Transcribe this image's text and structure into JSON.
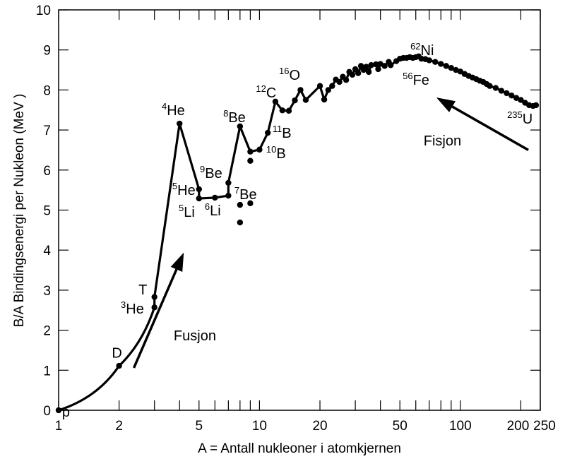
{
  "chart_data": {
    "type": "line",
    "title": "",
    "xlabel": "A = Antall nukleoner i atomkjernen",
    "ylabel": "B/A Bindingsenergi per Nukleon (MeV )",
    "xscale": "log",
    "xlim": [
      1,
      250
    ],
    "ylim": [
      0,
      10
    ],
    "grid": false,
    "x_ticks": [
      1,
      2,
      5,
      10,
      20,
      50,
      100,
      200,
      250
    ],
    "x_tick_labels": [
      "1",
      "2",
      "5",
      "10",
      "20",
      "50",
      "100",
      "200",
      "250"
    ],
    "x_minor_ticks": [
      3,
      4,
      6,
      7,
      8,
      9,
      30,
      40,
      60,
      70,
      80,
      90
    ],
    "y_ticks": [
      0,
      1,
      2,
      3,
      4,
      5,
      6,
      7,
      8,
      9,
      10
    ],
    "y_tick_labels": [
      "0",
      "1",
      "2",
      "3",
      "4",
      "5",
      "6",
      "7",
      "8",
      "9",
      "10"
    ],
    "series": [
      {
        "name": "main",
        "points": [
          [
            1,
            0
          ],
          [
            2,
            1.11
          ],
          [
            3,
            2.57
          ],
          [
            3,
            2.83
          ],
          [
            4,
            7.16
          ],
          [
            5,
            5.52
          ],
          [
            5,
            5.29
          ],
          [
            6,
            5.31
          ],
          [
            7,
            5.36
          ],
          [
            7,
            5.68
          ],
          [
            8,
            7.09
          ],
          [
            9,
            6.46
          ],
          [
            10,
            6.51
          ],
          [
            11,
            6.93
          ],
          [
            12,
            7.71
          ],
          [
            13,
            7.49
          ],
          [
            14,
            7.48
          ],
          [
            15,
            7.74
          ],
          [
            16,
            8.0
          ],
          [
            17,
            7.75
          ],
          [
            20,
            8.1
          ],
          [
            21,
            7.76
          ],
          [
            22,
            8.0
          ],
          [
            23,
            8.1
          ],
          [
            24,
            8.26
          ],
          [
            25,
            8.2
          ],
          [
            26,
            8.33
          ],
          [
            27,
            8.25
          ],
          [
            28,
            8.45
          ],
          [
            29,
            8.38
          ],
          [
            30,
            8.52
          ],
          [
            31,
            8.42
          ],
          [
            32,
            8.6
          ],
          [
            33,
            8.5
          ],
          [
            34,
            8.58
          ],
          [
            35,
            8.45
          ],
          [
            36,
            8.62
          ],
          [
            38,
            8.64
          ],
          [
            39,
            8.52
          ],
          [
            40,
            8.65
          ],
          [
            42,
            8.6
          ],
          [
            44,
            8.7
          ],
          [
            45,
            8.62
          ],
          [
            48,
            8.72
          ],
          [
            50,
            8.78
          ],
          [
            52,
            8.8
          ],
          [
            54,
            8.8
          ],
          [
            56,
            8.82
          ],
          [
            58,
            8.8
          ],
          [
            60,
            8.82
          ],
          [
            62,
            8.84
          ],
          [
            64,
            8.78
          ],
          [
            67,
            8.77
          ],
          [
            70,
            8.74
          ],
          [
            75,
            8.7
          ],
          [
            80,
            8.65
          ],
          [
            85,
            8.6
          ],
          [
            90,
            8.55
          ],
          [
            95,
            8.5
          ],
          [
            100,
            8.46
          ],
          [
            105,
            8.4
          ],
          [
            110,
            8.35
          ],
          [
            115,
            8.31
          ],
          [
            120,
            8.27
          ],
          [
            125,
            8.23
          ],
          [
            130,
            8.2
          ],
          [
            135,
            8.15
          ],
          [
            140,
            8.1
          ],
          [
            150,
            8.05
          ],
          [
            160,
            7.98
          ],
          [
            170,
            7.92
          ],
          [
            180,
            7.86
          ],
          [
            190,
            7.8
          ],
          [
            200,
            7.75
          ],
          [
            210,
            7.68
          ],
          [
            220,
            7.62
          ],
          [
            230,
            7.6
          ],
          [
            238,
            7.62
          ]
        ]
      },
      {
        "name": "isolated",
        "points": [
          [
            9,
            6.23
          ],
          [
            8,
            5.13
          ],
          [
            9,
            5.17
          ],
          [
            8,
            4.69
          ]
        ]
      }
    ],
    "annotations": [
      {
        "sup": "",
        "text": "p",
        "A": 1.04,
        "E": -0.16
      },
      {
        "sup": "",
        "text": "D",
        "A": 1.84,
        "E": 1.31
      },
      {
        "sup": "",
        "text": "T",
        "A": 2.5,
        "E": 2.89
      },
      {
        "sup": "3",
        "text": "He",
        "A": 2.04,
        "E": 2.42
      },
      {
        "sup": "4",
        "text": "He",
        "A": 3.26,
        "E": 7.37
      },
      {
        "sup": "5",
        "text": "He",
        "A": 3.68,
        "E": 5.38
      },
      {
        "sup": "5",
        "text": "Li",
        "A": 3.96,
        "E": 4.83
      },
      {
        "sup": "6",
        "text": "Li",
        "A": 5.34,
        "E": 4.87
      },
      {
        "sup": "9",
        "text": "Be",
        "A": 5.05,
        "E": 5.8
      },
      {
        "sup": "7",
        "text": "Be",
        "A": 7.5,
        "E": 5.27
      },
      {
        "sup": "8",
        "text": "Be",
        "A": 6.6,
        "E": 7.2
      },
      {
        "sup": "10",
        "text": "B",
        "A": 10.8,
        "E": 6.3
      },
      {
        "sup": "11",
        "text": "B",
        "A": 11.6,
        "E": 6.81
      },
      {
        "sup": "12",
        "text": "C",
        "A": 9.6,
        "E": 7.81
      },
      {
        "sup": "16",
        "text": "O",
        "A": 12.5,
        "E": 8.25
      },
      {
        "sup": "62",
        "text": "Ni",
        "A": 56.4,
        "E": 8.87
      },
      {
        "sup": "56",
        "text": "Fe",
        "A": 51.6,
        "E": 8.13
      },
      {
        "sup": "235",
        "text": "U",
        "A": 171,
        "E": 7.16
      },
      {
        "sup": "",
        "text": "Fusjon",
        "A": 3.74,
        "E": 1.75
      },
      {
        "sup": "",
        "text": "Fisjon",
        "A": 65.6,
        "E": 6.61
      }
    ],
    "arrows": [
      {
        "name": "fusjon",
        "from": [
          2.37,
          1.06
        ],
        "to": [
          4.2,
          3.94
        ]
      },
      {
        "name": "fisjon",
        "from": [
          218,
          6.5
        ],
        "to": [
          76,
          7.81
        ]
      }
    ]
  }
}
